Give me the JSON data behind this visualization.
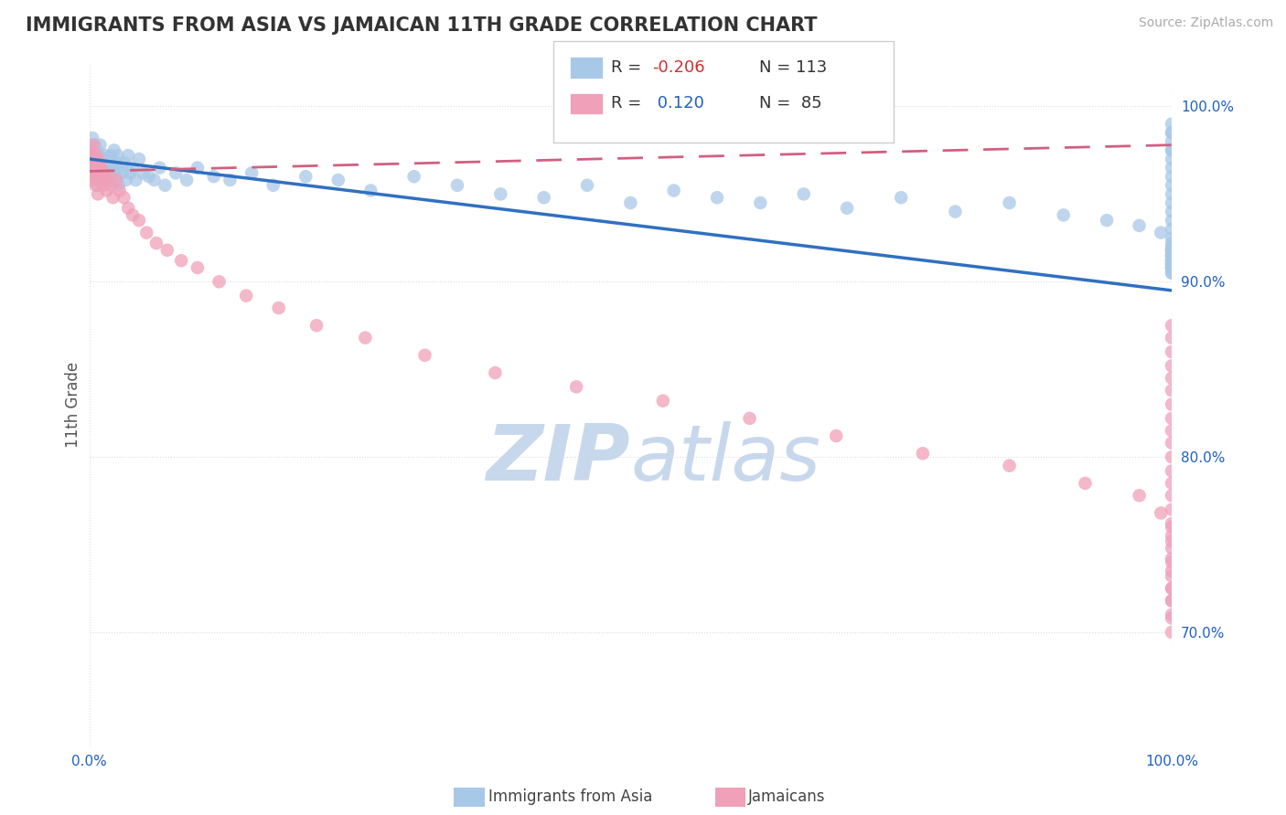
{
  "title": "IMMIGRANTS FROM ASIA VS JAMAICAN 11TH GRADE CORRELATION CHART",
  "source_text": "Source: ZipAtlas.com",
  "ylabel": "11th Grade",
  "legend_r1_label": "R = -0.206",
  "legend_n1_label": "N = 113",
  "legend_r2_label": "R =  0.120",
  "legend_n2_label": "N =  85",
  "color_blue": "#A8C8E8",
  "color_pink": "#F0A0B8",
  "color_blue_dark": "#3070C0",
  "color_pink_dark": "#D06080",
  "color_r_negative": "#D03030",
  "color_r_positive": "#2060C0",
  "color_n": "#333333",
  "bg_color": "#FFFFFF",
  "grid_color": "#DDDDDD",
  "title_color": "#333333",
  "watermark_color": "#C8D8EC",
  "blue_scatter_x": [
    0.001,
    0.002,
    0.003,
    0.004,
    0.005,
    0.005,
    0.006,
    0.007,
    0.007,
    0.008,
    0.008,
    0.009,
    0.009,
    0.01,
    0.01,
    0.011,
    0.012,
    0.012,
    0.013,
    0.014,
    0.015,
    0.015,
    0.016,
    0.017,
    0.018,
    0.019,
    0.02,
    0.021,
    0.022,
    0.023,
    0.024,
    0.025,
    0.026,
    0.027,
    0.028,
    0.03,
    0.032,
    0.034,
    0.036,
    0.038,
    0.04,
    0.043,
    0.046,
    0.05,
    0.055,
    0.06,
    0.065,
    0.07,
    0.08,
    0.09,
    0.1,
    0.115,
    0.13,
    0.15,
    0.17,
    0.2,
    0.23,
    0.26,
    0.3,
    0.34,
    0.38,
    0.42,
    0.46,
    0.5,
    0.54,
    0.58,
    0.62,
    0.66,
    0.7,
    0.75,
    0.8,
    0.85,
    0.9,
    0.94,
    0.97,
    0.99,
    1.0,
    1.0,
    1.0,
    1.0,
    1.0,
    1.0,
    1.0,
    1.0,
    1.0,
    1.0,
    1.0,
    1.0,
    1.0,
    1.0,
    1.0,
    1.0,
    1.0,
    1.0,
    1.0,
    1.0,
    1.0,
    1.0,
    1.0,
    1.0,
    1.0,
    1.0,
    1.0,
    1.0,
    1.0,
    1.0,
    1.0,
    1.0,
    1.0,
    1.0,
    1.0,
    1.0,
    1.0
  ],
  "blue_scatter_y": [
    0.975,
    0.968,
    0.982,
    0.972,
    0.965,
    0.978,
    0.97,
    0.96,
    0.975,
    0.968,
    0.955,
    0.972,
    0.962,
    0.978,
    0.958,
    0.965,
    0.97,
    0.96,
    0.968,
    0.958,
    0.972,
    0.962,
    0.965,
    0.97,
    0.96,
    0.968,
    0.972,
    0.958,
    0.965,
    0.975,
    0.96,
    0.968,
    0.972,
    0.955,
    0.965,
    0.962,
    0.968,
    0.958,
    0.972,
    0.962,
    0.965,
    0.958,
    0.97,
    0.962,
    0.96,
    0.958,
    0.965,
    0.955,
    0.962,
    0.958,
    0.965,
    0.96,
    0.958,
    0.962,
    0.955,
    0.96,
    0.958,
    0.952,
    0.96,
    0.955,
    0.95,
    0.948,
    0.955,
    0.945,
    0.952,
    0.948,
    0.945,
    0.95,
    0.942,
    0.948,
    0.94,
    0.945,
    0.938,
    0.935,
    0.932,
    0.928,
    0.925,
    0.922,
    0.918,
    0.915,
    0.912,
    0.908,
    0.92,
    0.915,
    0.91,
    0.918,
    0.912,
    0.908,
    0.915,
    0.91,
    0.905,
    0.912,
    0.908,
    0.905,
    0.91,
    0.908,
    0.912,
    0.918,
    0.975,
    0.985,
    0.99,
    0.985,
    0.98,
    0.975,
    0.97,
    0.965,
    0.96,
    0.955,
    0.95,
    0.945,
    0.94,
    0.935,
    0.93
  ],
  "pink_scatter_x": [
    0.001,
    0.002,
    0.002,
    0.003,
    0.003,
    0.004,
    0.004,
    0.005,
    0.005,
    0.006,
    0.006,
    0.007,
    0.007,
    0.008,
    0.008,
    0.009,
    0.01,
    0.01,
    0.011,
    0.012,
    0.013,
    0.014,
    0.015,
    0.016,
    0.018,
    0.02,
    0.022,
    0.025,
    0.028,
    0.032,
    0.036,
    0.04,
    0.046,
    0.053,
    0.062,
    0.072,
    0.085,
    0.1,
    0.12,
    0.145,
    0.175,
    0.21,
    0.255,
    0.31,
    0.375,
    0.45,
    0.53,
    0.61,
    0.69,
    0.77,
    0.85,
    0.92,
    0.97,
    0.99,
    1.0,
    1.0,
    1.0,
    1.0,
    1.0,
    1.0,
    1.0,
    1.0,
    1.0,
    1.0,
    1.0,
    1.0,
    1.0,
    1.0,
    1.0,
    1.0,
    1.0,
    1.0,
    1.0,
    1.0,
    1.0,
    1.0,
    1.0,
    1.0,
    1.0,
    1.0,
    1.0,
    1.0,
    1.0,
    1.0,
    1.0
  ],
  "pink_scatter_y": [
    0.968,
    0.975,
    0.958,
    0.972,
    0.962,
    0.968,
    0.978,
    0.96,
    0.97,
    0.965,
    0.955,
    0.972,
    0.962,
    0.968,
    0.95,
    0.96,
    0.968,
    0.958,
    0.965,
    0.96,
    0.955,
    0.962,
    0.958,
    0.952,
    0.96,
    0.955,
    0.948,
    0.958,
    0.952,
    0.948,
    0.942,
    0.938,
    0.935,
    0.928,
    0.922,
    0.918,
    0.912,
    0.908,
    0.9,
    0.892,
    0.885,
    0.875,
    0.868,
    0.858,
    0.848,
    0.84,
    0.832,
    0.822,
    0.812,
    0.802,
    0.795,
    0.785,
    0.778,
    0.768,
    0.76,
    0.752,
    0.742,
    0.735,
    0.725,
    0.718,
    0.708,
    0.7,
    0.875,
    0.868,
    0.86,
    0.852,
    0.845,
    0.838,
    0.83,
    0.822,
    0.815,
    0.808,
    0.8,
    0.792,
    0.785,
    0.778,
    0.77,
    0.762,
    0.755,
    0.748,
    0.74,
    0.732,
    0.725,
    0.718,
    0.71
  ],
  "blue_trend_x": [
    0.0,
    1.0
  ],
  "blue_trend_y": [
    0.97,
    0.895
  ],
  "pink_trend_x": [
    0.0,
    1.0
  ],
  "pink_trend_y": [
    0.963,
    0.978
  ],
  "xlim": [
    0.0,
    1.0
  ],
  "ylim": [
    0.635,
    1.025
  ],
  "yticks": [
    0.7,
    0.8,
    0.9,
    1.0
  ],
  "ytick_labels": [
    "70.0%",
    "80.0%",
    "90.0%",
    "100.0%"
  ],
  "xticks": [
    0.0,
    1.0
  ],
  "xtick_labels": [
    "0.0%",
    "100.0%"
  ]
}
